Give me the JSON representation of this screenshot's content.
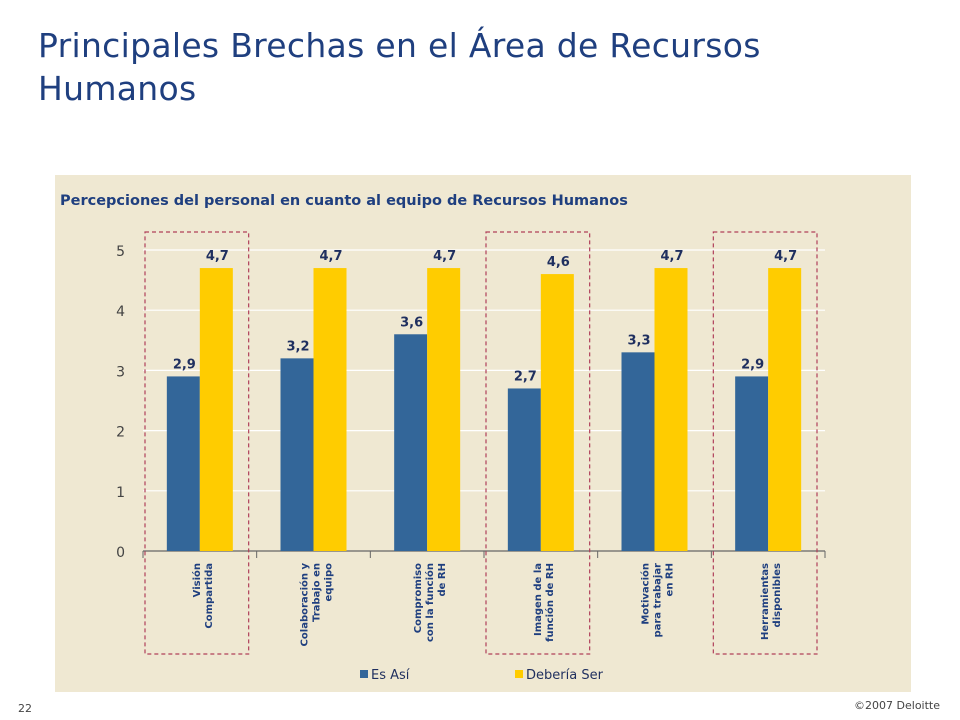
{
  "slide": {
    "title": "Principales Brechas en el Área de Recursos Humanos",
    "page_number": "22",
    "copyright": "©2007 Deloitte"
  },
  "chart_data": {
    "type": "bar",
    "title": "Percepciones del personal en cuanto al equipo de Recursos Humanos",
    "categories": [
      [
        "Visión",
        "Compartida"
      ],
      [
        "Colaboración y",
        "Trabajo en",
        "equipo"
      ],
      [
        "Compromiso",
        "con la función",
        "de RH"
      ],
      [
        "Imagen de la",
        "función de RH"
      ],
      [
        "Motivación",
        "para trabajar",
        "en RH"
      ],
      [
        "Herramientas",
        "disponibles"
      ]
    ],
    "series": [
      {
        "name": "Es Así",
        "color": "#336699",
        "values": [
          2.9,
          3.2,
          3.6,
          2.7,
          3.3,
          2.9
        ],
        "labels": [
          "2,9",
          "3,2",
          "3,6",
          "2,7",
          "3,3",
          "2,9"
        ]
      },
      {
        "name": "Debería Ser",
        "color": "#ffcc00",
        "values": [
          4.7,
          4.7,
          4.7,
          4.6,
          4.7,
          4.7
        ],
        "labels": [
          "4,7",
          "4,7",
          "4,7",
          "4,6",
          "4,7",
          "4,7"
        ]
      }
    ],
    "yticks": [
      "0",
      "1",
      "2",
      "3",
      "4",
      "5"
    ],
    "ylim": [
      0,
      5
    ],
    "grid": true,
    "legend": "bottom",
    "highlighted_categories": [
      0,
      3,
      5
    ],
    "highlight_color": "#b0405a"
  }
}
